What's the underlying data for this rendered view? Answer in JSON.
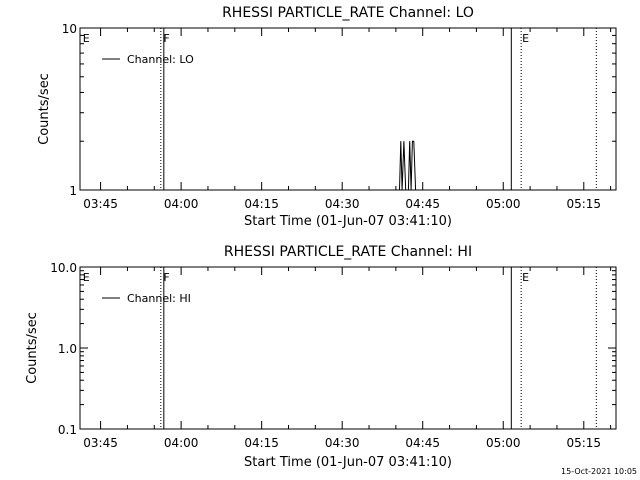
{
  "chart_data": [
    {
      "type": "line",
      "title": "RHESSI PARTICLE_RATE Channel: LO",
      "xlabel": "Start Time (01-Jun-07 03:41:10)",
      "ylabel": "Counts/sec",
      "xticks": [
        "03:45",
        "04:00",
        "04:15",
        "04:30",
        "04:45",
        "05:00",
        "05:15"
      ],
      "yticks": [
        "1",
        "10"
      ],
      "yscale": "log",
      "ylim": [
        1,
        10
      ],
      "xlim": [
        "03:41:10",
        "05:21:00"
      ],
      "legend": "top-left",
      "series": [
        {
          "name": "Channel: LO",
          "points": [
            [
              "04:40:40",
              1
            ],
            [
              "04:40:55",
              2
            ],
            [
              "04:41:10",
              1
            ],
            [
              "04:41:30",
              2
            ],
            [
              "04:41:50",
              1
            ],
            [
              "04:42:20",
              1
            ],
            [
              "04:42:35",
              2
            ],
            [
              "04:42:50",
              1
            ],
            [
              "04:43:05",
              2
            ],
            [
              "04:43:20",
              2
            ],
            [
              "04:43:40",
              1
            ]
          ]
        }
      ],
      "markers": [
        {
          "time": "03:41:30",
          "label": "E",
          "style": "none"
        },
        {
          "time": "03:56:30",
          "label": "F",
          "style": "solid+dotted"
        },
        {
          "time": "05:01:30",
          "label": "",
          "style": "solid"
        },
        {
          "time": "05:03:20",
          "label": "E",
          "style": "dotted"
        },
        {
          "time": "05:17:20",
          "label": "",
          "style": "dotted"
        }
      ]
    },
    {
      "type": "line",
      "title": "RHESSI PARTICLE_RATE Channel: HI",
      "xlabel": "Start Time (01-Jun-07 03:41:10)",
      "ylabel": "Counts/sec",
      "xticks": [
        "03:45",
        "04:00",
        "04:15",
        "04:30",
        "04:45",
        "05:00",
        "05:15"
      ],
      "yticks": [
        "0.1",
        "1.0",
        "10.0"
      ],
      "yscale": "log",
      "ylim": [
        0.1,
        10
      ],
      "xlim": [
        "03:41:10",
        "05:21:00"
      ],
      "legend": "top-left",
      "series": [
        {
          "name": "Channel: HI",
          "points": []
        }
      ],
      "markers": [
        {
          "time": "03:41:30",
          "label": "E",
          "style": "none"
        },
        {
          "time": "03:56:30",
          "label": "F",
          "style": "solid+dotted"
        },
        {
          "time": "05:01:30",
          "label": "",
          "style": "solid"
        },
        {
          "time": "05:03:20",
          "label": "E",
          "style": "dotted"
        },
        {
          "time": "05:17:20",
          "label": "",
          "style": "dotted"
        }
      ]
    }
  ],
  "footer": {
    "timestamp": "15-Oct-2021 10:05"
  }
}
